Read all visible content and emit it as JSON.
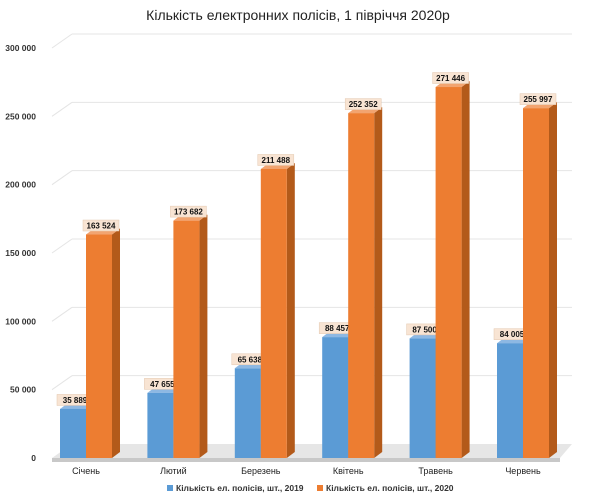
{
  "chart_data": {
    "type": "bar",
    "title": "Кількість електронних полісів, 1 півріччя 2020р",
    "xlabel": "",
    "ylabel": "",
    "categories": [
      "Січень",
      "Лютий",
      "Березень",
      "Квітень",
      "Травень",
      "Червень"
    ],
    "series": [
      {
        "name": "Кількість ел. полісів, шт., 2019",
        "values": [
          35889,
          47655,
          65638,
          88457,
          87500,
          84005
        ],
        "labels": [
          "35 889",
          "47 655",
          "65 638",
          "88 457",
          "87 500",
          "84 005"
        ],
        "color": "#5b9bd5",
        "side_color": "#3f73a6",
        "top_color": "#8db8e3"
      },
      {
        "name": "Кількість ел. полісів, шт., 2020",
        "values": [
          163524,
          173682,
          211488,
          252352,
          271446,
          255997
        ],
        "labels": [
          "163 524",
          "173 682",
          "211 488",
          "252 352",
          "271 446",
          "255 997"
        ],
        "color": "#ed7d31",
        "side_color": "#b35a1a",
        "top_color": "#f2a470"
      }
    ],
    "yticks": [
      "0",
      "50 000",
      "100 000",
      "150 000",
      "200 000",
      "250 000",
      "300 000"
    ],
    "ylim": [
      0,
      300000
    ],
    "grid": true,
    "legend_position": "bottom",
    "label_bg": "#f8e4d3"
  }
}
